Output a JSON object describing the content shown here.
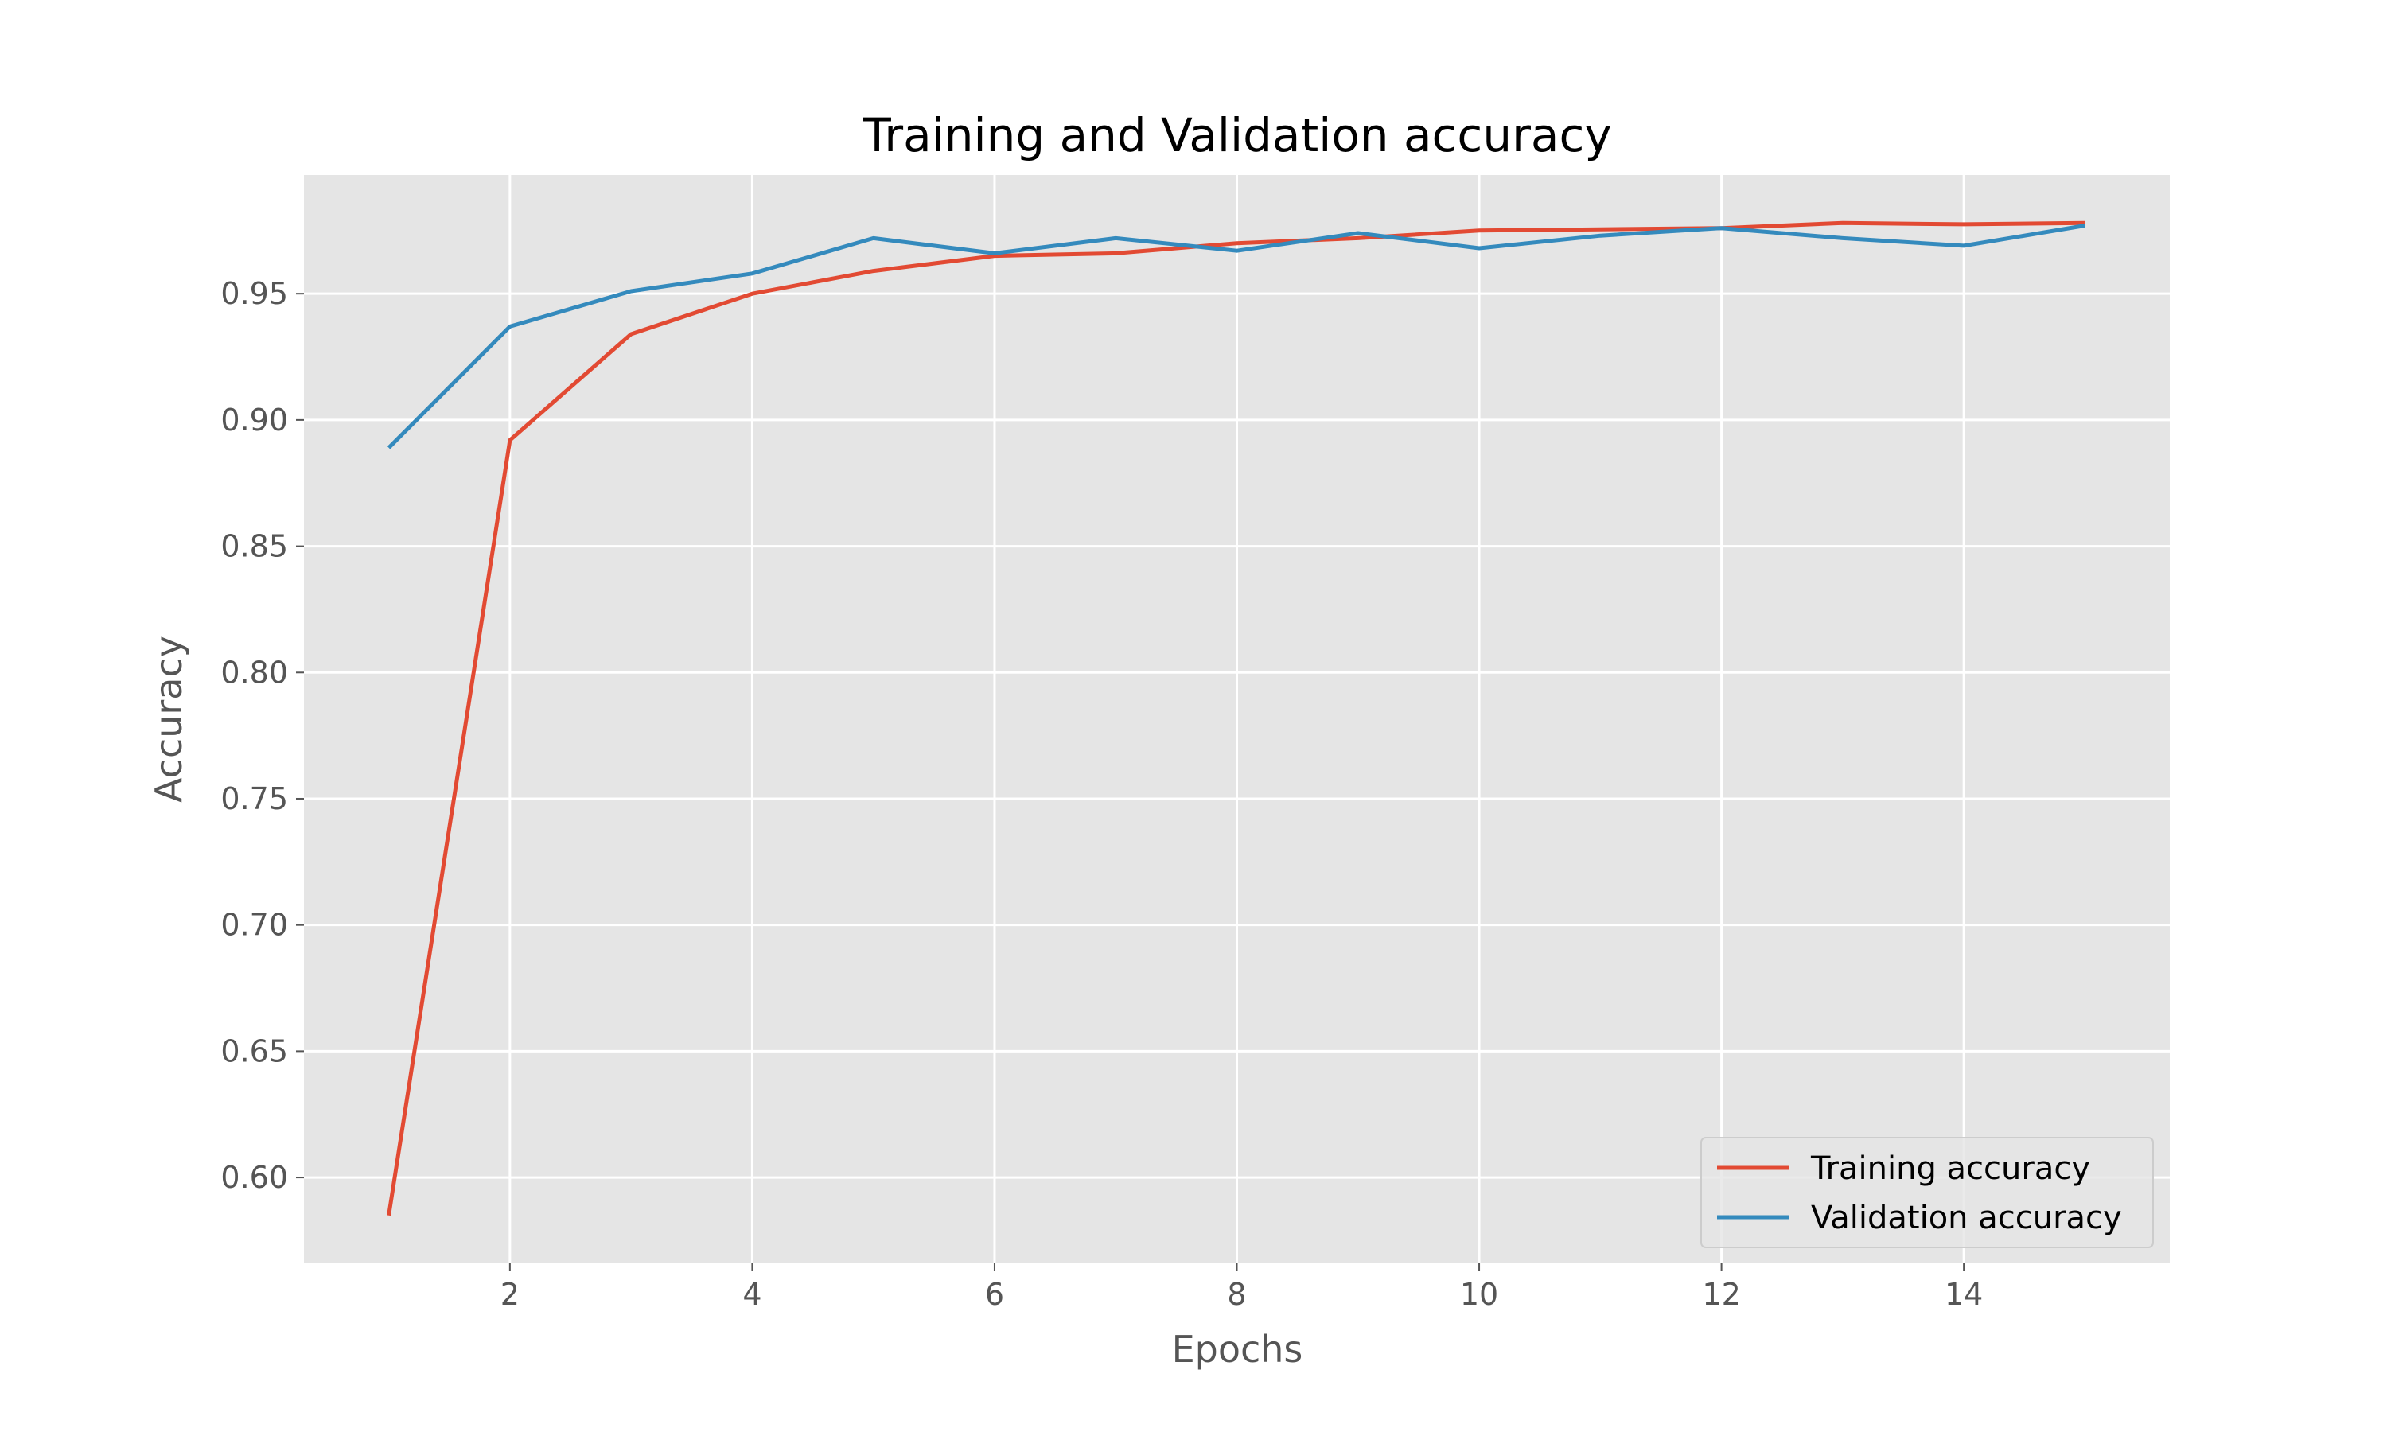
{
  "chart_data": {
    "type": "line",
    "title": "Training and Validation accuracy",
    "xlabel": "Epochs",
    "ylabel": "Accuracy",
    "xlim": [
      0.3,
      15.7
    ],
    "ylim": [
      0.566,
      0.997
    ],
    "xticks": [
      2,
      4,
      6,
      8,
      10,
      12,
      14
    ],
    "yticks": [
      0.6,
      0.65,
      0.7,
      0.75,
      0.8,
      0.85,
      0.9,
      0.95
    ],
    "ytick_labels": [
      "0.60",
      "0.65",
      "0.70",
      "0.75",
      "0.80",
      "0.85",
      "0.90",
      "0.95"
    ],
    "grid": true,
    "legend_position": "lower-right",
    "background": "#e5e5e5",
    "x": [
      1,
      2,
      3,
      4,
      5,
      6,
      7,
      8,
      9,
      10,
      11,
      12,
      13,
      14,
      15
    ],
    "series": [
      {
        "name": "Training accuracy",
        "color": "#e24a33",
        "values": [
          0.585,
          0.892,
          0.934,
          0.95,
          0.959,
          0.965,
          0.966,
          0.97,
          0.972,
          0.975,
          0.9755,
          0.976,
          0.978,
          0.9775,
          0.978
        ]
      },
      {
        "name": "Validation accuracy",
        "color": "#348abd",
        "values": [
          0.889,
          0.937,
          0.951,
          0.958,
          0.972,
          0.966,
          0.972,
          0.967,
          0.974,
          0.968,
          0.973,
          0.976,
          0.972,
          0.969,
          0.977
        ]
      }
    ]
  }
}
